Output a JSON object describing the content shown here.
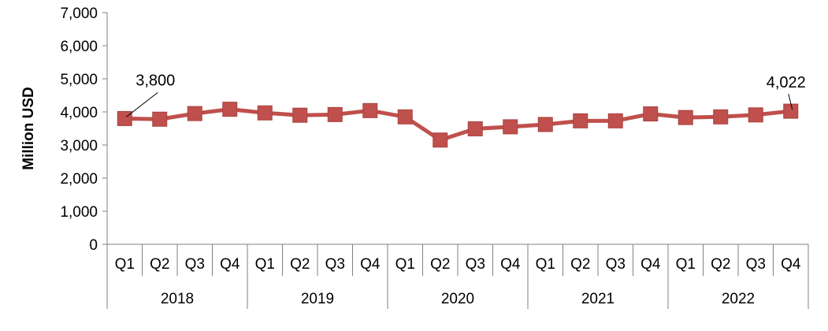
{
  "chart_data": {
    "type": "line",
    "ylabel": "Million USD",
    "xlabel": "",
    "ylim": [
      0,
      7000
    ],
    "yticks": [
      0,
      1000,
      2000,
      3000,
      4000,
      5000,
      6000,
      7000
    ],
    "ytick_labels": [
      "0",
      "1,000",
      "2,000",
      "3,000",
      "4,000",
      "5,000",
      "6,000",
      "7,000"
    ],
    "grid": false,
    "legend": "none",
    "line_color": "#C0504D",
    "marker_color": "#C0504D",
    "categories": [
      "Q1",
      "Q2",
      "Q3",
      "Q4",
      "Q1",
      "Q2",
      "Q3",
      "Q4",
      "Q1",
      "Q2",
      "Q3",
      "Q4",
      "Q1",
      "Q2",
      "Q3",
      "Q4",
      "Q1",
      "Q2",
      "Q3",
      "Q4"
    ],
    "groups": [
      {
        "label": "2018",
        "span": 4
      },
      {
        "label": "2019",
        "span": 4
      },
      {
        "label": "2020",
        "span": 4
      },
      {
        "label": "2021",
        "span": 4
      },
      {
        "label": "2022",
        "span": 4
      }
    ],
    "series": [
      {
        "values": [
          3800,
          3780,
          3950,
          4080,
          3970,
          3900,
          3920,
          4040,
          3850,
          3150,
          3490,
          3550,
          3620,
          3730,
          3730,
          3940,
          3830,
          3850,
          3910,
          4022
        ]
      }
    ],
    "annotations": [
      {
        "index": 0,
        "text": "3,800"
      },
      {
        "index": 19,
        "text": "4,022"
      }
    ]
  }
}
